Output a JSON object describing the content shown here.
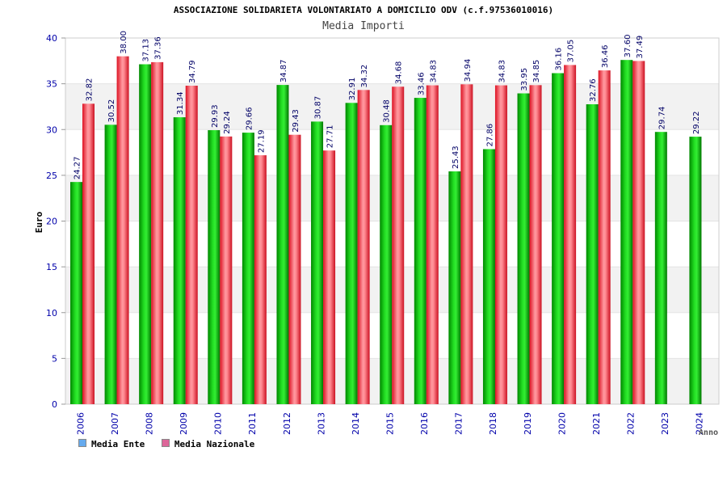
{
  "chart_data": {
    "type": "bar",
    "title": "ASSOCIAZIONE SOLIDARIETA VOLONTARIATO A DOMICILIO ODV (c.f.97536010016)",
    "subtitle": "Media Importi",
    "xlabel": "Anno",
    "ylabel": "Euro",
    "ylim": [
      0,
      40
    ],
    "yticks": [
      "0",
      "5",
      "10",
      "15",
      "20",
      "25",
      "30",
      "35",
      "40"
    ],
    "categories": [
      "2006",
      "2007",
      "2008",
      "2009",
      "2010",
      "2011",
      "2012",
      "2013",
      "2014",
      "2015",
      "2016",
      "2017",
      "2018",
      "2019",
      "2020",
      "2021",
      "2022",
      "2023",
      "2024"
    ],
    "series": [
      {
        "name": "Media Ente",
        "color": "#00cc00",
        "legend_color": "#66aaee",
        "values": [
          24.27,
          30.52,
          37.13,
          31.34,
          29.93,
          29.66,
          34.87,
          30.87,
          32.91,
          30.48,
          33.46,
          25.43,
          27.86,
          33.95,
          36.16,
          32.76,
          37.6,
          29.74,
          29.22
        ]
      },
      {
        "name": "Media Nazionale",
        "color": "#ee3344",
        "legend_color": "#dd6699",
        "values": [
          32.82,
          38.0,
          37.36,
          34.79,
          29.24,
          27.19,
          29.43,
          27.71,
          34.32,
          34.68,
          34.83,
          34.94,
          34.83,
          34.85,
          37.05,
          36.46,
          37.49,
          null,
          null
        ]
      }
    ],
    "grid": true,
    "legend_position": "bottom-left"
  }
}
